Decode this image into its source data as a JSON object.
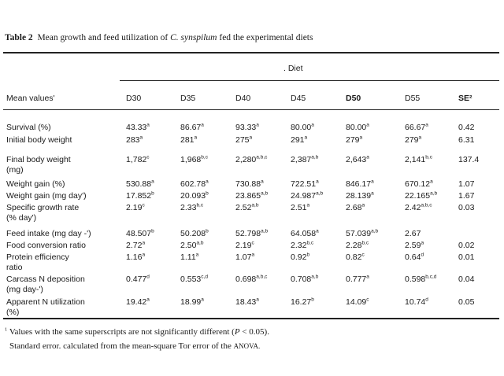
{
  "caption": {
    "label": "Table 2",
    "text_before": "Mean growth and feed utilization of",
    "species": "C. synspilum",
    "text_after": "fed the experimental diets"
  },
  "diet_header": ". Diet",
  "columns": [
    "Mean values'",
    "D30",
    "D35",
    "D40",
    "D45",
    "D50",
    "D55",
    "SE²"
  ],
  "rows": [
    {
      "label": [
        "Survival (%)"
      ],
      "cells": [
        [
          "43.33",
          "a"
        ],
        [
          "86.67",
          "a"
        ],
        [
          "93.33",
          "a"
        ],
        [
          "80.00",
          "a"
        ],
        [
          "80.00",
          "a"
        ],
        [
          "66.67",
          "a"
        ]
      ],
      "se": "0.42"
    },
    {
      "label": [
        "Initial body weight"
      ],
      "cells": [
        [
          "283",
          "a"
        ],
        [
          "281",
          "a"
        ],
        [
          "275",
          "a"
        ],
        [
          "291",
          "a"
        ],
        [
          "279",
          "a"
        ],
        [
          "279",
          "a"
        ]
      ],
      "se": "6.31"
    },
    {
      "label": [
        "Final body weight",
        "(mg)"
      ],
      "cells": [
        [
          "1,782",
          "c"
        ],
        [
          "1,968",
          "b,c"
        ],
        [
          "2,280",
          "a,b,c"
        ],
        [
          "2,387",
          "a,b"
        ],
        [
          "2,643",
          "a"
        ],
        [
          "2,141",
          "b,c"
        ]
      ],
      "se": "137.4"
    },
    {
      "label": [
        "Weight gain (%)"
      ],
      "cells": [
        [
          "530.88",
          "a"
        ],
        [
          "602.78",
          "a"
        ],
        [
          "730.88",
          "a"
        ],
        [
          "722.51",
          "a"
        ],
        [
          "846.17",
          "a"
        ],
        [
          "670.12",
          "a"
        ]
      ],
      "se": "1.07"
    },
    {
      "label": [
        "Weight gain (mg day')"
      ],
      "cells": [
        [
          "17.852",
          "b"
        ],
        [
          "20.093",
          "b"
        ],
        [
          "23.865",
          "a,b"
        ],
        [
          "24.987",
          "a,b"
        ],
        [
          "28.139",
          "a"
        ],
        [
          "22.165",
          "a,b"
        ]
      ],
      "se": "1.67"
    },
    {
      "label": [
        "Specific growth rate",
        "(% day')"
      ],
      "cells": [
        [
          "2.19",
          "c"
        ],
        [
          "2.33",
          "b,c"
        ],
        [
          "2.52",
          "a,b"
        ],
        [
          "2.51",
          "a"
        ],
        [
          "2.68",
          "a"
        ],
        [
          "2.42",
          "a,b,c"
        ]
      ],
      "se": "0.03"
    },
    {
      "label": [
        "Feed intake (mg day -')"
      ],
      "cells": [
        [
          "48.507",
          "b"
        ],
        [
          "50.208",
          "b"
        ],
        [
          "52.798",
          "a,b"
        ],
        [
          "64.058",
          "a"
        ],
        [
          "57.039",
          "a,b"
        ],
        [
          "2.67",
          ""
        ]
      ],
      "se": ""
    },
    {
      "label": [
        "Food conversion ratio"
      ],
      "cells": [
        [
          "2.72",
          "a"
        ],
        [
          "2.50",
          "a,b"
        ],
        [
          "2.19",
          "c"
        ],
        [
          "2.32",
          "b,c"
        ],
        [
          "2.28",
          "b,c"
        ],
        [
          "2.59",
          "a"
        ]
      ],
      "se": "0.02"
    },
    {
      "label": [
        "Protein efficiency",
        "ratio"
      ],
      "cells": [
        [
          "1.16",
          "a"
        ],
        [
          "1.11",
          "a"
        ],
        [
          "1.07",
          "a"
        ],
        [
          "0.92",
          "b"
        ],
        [
          "0.82",
          "c"
        ],
        [
          "0.64",
          "d"
        ]
      ],
      "se": "0.01"
    },
    {
      "label": [
        "Carcass N deposition",
        "(mg day-')"
      ],
      "cells": [
        [
          "0.477",
          "d"
        ],
        [
          "0.553",
          "c,d"
        ],
        [
          "0.698",
          "a,b,c"
        ],
        [
          "0.708",
          "a,b"
        ],
        [
          "0.777",
          "a"
        ],
        [
          "0.598",
          "b,c,d"
        ]
      ],
      "se": "0.04"
    },
    {
      "label": [
        "Apparent N utilization",
        "(%)"
      ],
      "cells": [
        [
          "19.42",
          "a"
        ],
        [
          "18.99",
          "a"
        ],
        [
          "18.43",
          "a"
        ],
        [
          "16.27",
          "b"
        ],
        [
          "14.09",
          "c"
        ],
        [
          "10.74",
          "d"
        ]
      ],
      "se": "0.05"
    }
  ],
  "footnotes": {
    "note1_mark": "1",
    "note1_text": "Values with the same superscripts are not significantly different (",
    "note1_stat": "P",
    "note1_end": "< 0.05).",
    "note2_text": "Standard error. calculated from the mean-square Tor error of the",
    "note2_abbrev": "ANOVA."
  }
}
